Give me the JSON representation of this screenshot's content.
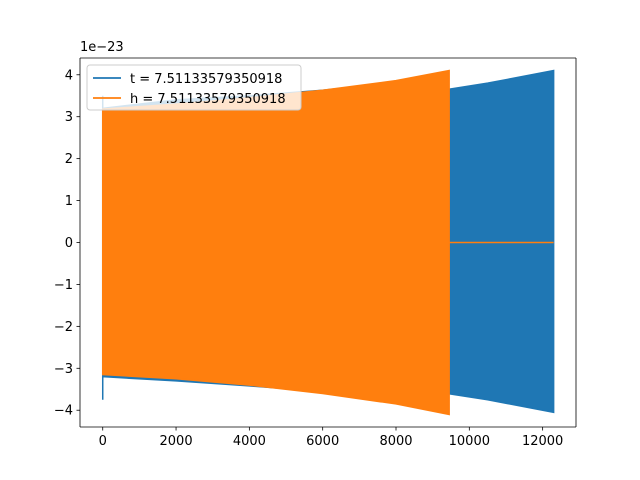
{
  "chart_data": {
    "type": "line",
    "title": "",
    "xlabel": "",
    "ylabel": "",
    "y_offset_text": "1e−23",
    "xlim": [
      -620,
      12910
    ],
    "ylim": [
      -4.4,
      4.4
    ],
    "x_ticks": [
      0,
      2000,
      4000,
      6000,
      8000,
      10000,
      12000
    ],
    "x_tick_labels": [
      "0",
      "2000",
      "4000",
      "6000",
      "8000",
      "10000",
      "12000"
    ],
    "y_ticks": [
      -4,
      -3,
      -2,
      -1,
      0,
      1,
      2,
      3,
      4
    ],
    "y_tick_labels": [
      "−4",
      "−3",
      "−2",
      "−1",
      "0",
      "1",
      "2",
      "3",
      "4"
    ],
    "grid": false,
    "legend_position": "upper-left",
    "series": [
      {
        "name": "t = 7.51133579350918",
        "color": "#1f77b4",
        "render": "envelope",
        "x_range": [
          0,
          12300
        ],
        "upper_envelope": [
          [
            0,
            3.5
          ],
          [
            0,
            3.2
          ],
          [
            2000,
            3.4
          ],
          [
            4000,
            3.5
          ],
          [
            6000,
            3.63
          ],
          [
            8000,
            3.82
          ],
          [
            9400,
            3.65
          ],
          [
            10500,
            3.8
          ],
          [
            12300,
            4.1
          ]
        ],
        "lower_envelope": [
          [
            0,
            -3.75
          ],
          [
            0,
            -3.2
          ],
          [
            2000,
            -3.3
          ],
          [
            4000,
            -3.42
          ],
          [
            6000,
            -3.55
          ],
          [
            8000,
            -3.78
          ],
          [
            9400,
            -3.6
          ],
          [
            10500,
            -3.75
          ],
          [
            12300,
            -4.05
          ]
        ]
      },
      {
        "name": "h = 7.51133579350918",
        "color": "#ff7f0e",
        "render": "envelope",
        "x_range": [
          0,
          9450
        ],
        "upper_envelope": [
          [
            0,
            3.18
          ],
          [
            2000,
            3.3
          ],
          [
            4000,
            3.45
          ],
          [
            6000,
            3.63
          ],
          [
            8000,
            3.86
          ],
          [
            9450,
            4.1
          ]
        ],
        "lower_envelope": [
          [
            0,
            -3.15
          ],
          [
            2000,
            -3.25
          ],
          [
            4000,
            -3.4
          ],
          [
            6000,
            -3.6
          ],
          [
            8000,
            -3.85
          ],
          [
            9450,
            -4.1
          ]
        ],
        "tail_after_x": [
          9450,
          12300
        ],
        "tail_value": 0
      }
    ]
  }
}
